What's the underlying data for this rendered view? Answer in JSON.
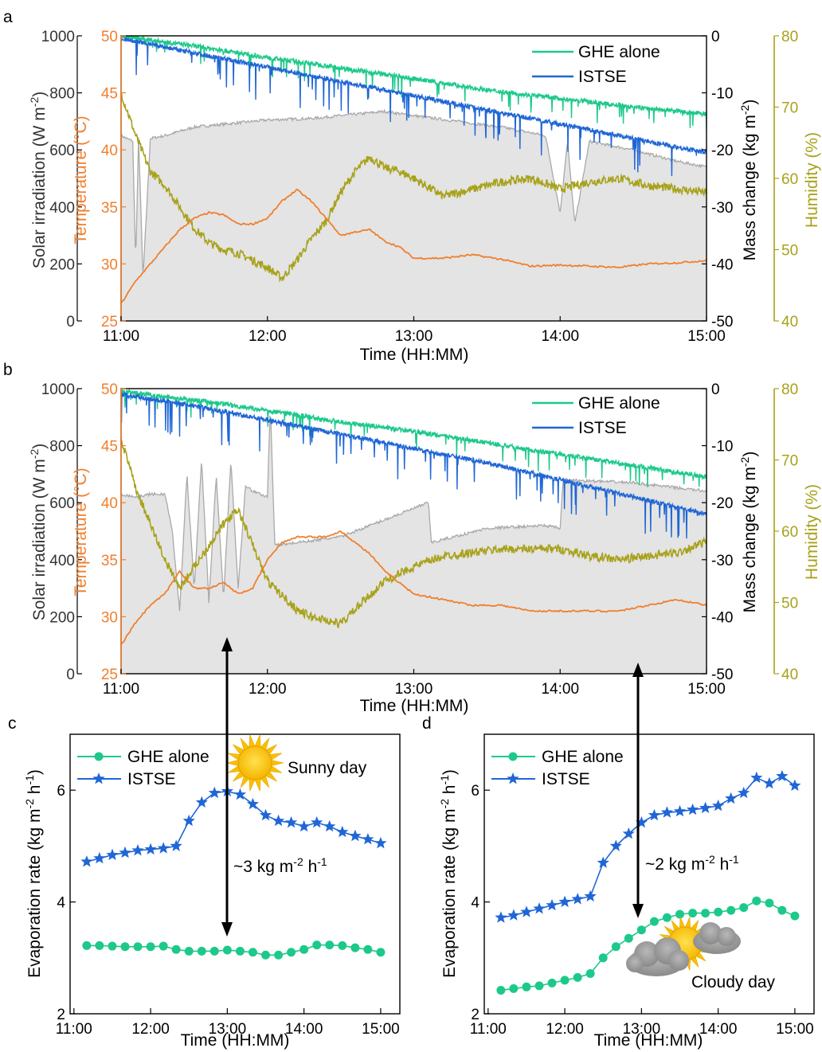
{
  "panels": {
    "a": {
      "label": "a"
    },
    "b": {
      "label": "b"
    },
    "c": {
      "label": "c"
    },
    "d": {
      "label": "d"
    }
  },
  "colors": {
    "ghe": "#1dc98a",
    "istse": "#1f66d6",
    "temperature": "#f07f2e",
    "humidity": "#a8a21b",
    "solar_line": "#a9a9a9",
    "solar_fill": "#e4e4e4"
  },
  "chart_data": [
    {
      "panel": "a",
      "type": "line",
      "xlabel": "Time (HH:MM)",
      "x_ticks": [
        "11:00",
        "12:00",
        "13:00",
        "14:00",
        "15:00"
      ],
      "axes": {
        "solar": {
          "label": "Solar irradiation (W m-2)",
          "ylim": [
            0,
            1000
          ],
          "ticks": [
            "0",
            "200",
            "400",
            "600",
            "800",
            "1000"
          ]
        },
        "temperature": {
          "label": "Temperature (°C)",
          "ylim": [
            25,
            50
          ],
          "ticks": [
            "25",
            "30",
            "35",
            "40",
            "45",
            "50"
          ]
        },
        "mass": {
          "label": "Mass change (kg m-2)",
          "ylim": [
            -50,
            0
          ],
          "ticks": [
            "-50",
            "-40",
            "-30",
            "-20",
            "-10",
            "0"
          ]
        },
        "humidity": {
          "label": "Humidity (%)",
          "ylim": [
            40,
            80
          ],
          "ticks": [
            "40",
            "50",
            "60",
            "70",
            "80"
          ]
        }
      },
      "legend": [
        "GHE alone",
        "ISTSE"
      ],
      "series": {
        "ghe_mass": {
          "name": "GHE alone",
          "x": [
            11.0,
            11.5,
            12.0,
            12.5,
            13.0,
            13.5,
            14.0,
            14.5,
            15.0
          ],
          "y": [
            0,
            -1.8,
            -3.8,
            -5.6,
            -7.5,
            -9.5,
            -11.0,
            -12.5,
            -13.7
          ]
        },
        "istse_mass": {
          "name": "ISTSE",
          "x": [
            11.0,
            11.5,
            12.0,
            12.5,
            13.0,
            13.5,
            14.0,
            14.5,
            15.0
          ],
          "y": [
            -0.5,
            -3.0,
            -5.5,
            -8.0,
            -10.5,
            -13.0,
            -15.5,
            -18.0,
            -20.5
          ]
        },
        "temperature": {
          "x": [
            11.0,
            11.1,
            11.2,
            11.3,
            11.4,
            11.5,
            11.6,
            11.7,
            11.8,
            11.9,
            12.0,
            12.1,
            12.2,
            12.3,
            12.4,
            12.5,
            12.6,
            12.7,
            12.8,
            12.9,
            13.0,
            13.2,
            13.4,
            13.6,
            13.8,
            14.0,
            14.2,
            14.4,
            14.6,
            14.8,
            15.0
          ],
          "y": [
            26.5,
            28.5,
            30.0,
            31.5,
            33.0,
            34.0,
            34.5,
            34.3,
            33.5,
            33.5,
            34.0,
            35.5,
            36.5,
            35.5,
            34.0,
            32.5,
            32.8,
            33.0,
            32.0,
            31.5,
            30.5,
            30.5,
            30.8,
            30.4,
            29.8,
            29.9,
            29.8,
            29.7,
            30.0,
            30.1,
            30.3
          ]
        },
        "humidity": {
          "x": [
            11.0,
            11.1,
            11.2,
            11.3,
            11.4,
            11.5,
            11.6,
            11.7,
            11.8,
            11.9,
            12.0,
            12.1,
            12.2,
            12.3,
            12.4,
            12.5,
            12.6,
            12.7,
            12.8,
            12.9,
            13.0,
            13.2,
            13.4,
            13.6,
            13.8,
            14.0,
            14.2,
            14.4,
            14.6,
            14.8,
            15.0
          ],
          "y": [
            72.0,
            66.0,
            61.0,
            59.0,
            56.0,
            53.0,
            51.0,
            50.0,
            49.5,
            48.5,
            47.5,
            46.0,
            48.5,
            51.5,
            54.0,
            58.0,
            61.0,
            63.0,
            61.5,
            61.0,
            60.0,
            57.5,
            58.5,
            59.5,
            60.0,
            58.5,
            59.5,
            60.0,
            59.0,
            58.5,
            58.0
          ]
        },
        "solar": {
          "x": [
            11.0,
            11.08,
            11.1,
            11.12,
            11.15,
            11.2,
            11.3,
            11.5,
            11.7,
            12.0,
            12.3,
            12.6,
            12.8,
            13.0,
            13.3,
            13.6,
            13.9,
            14.0,
            14.05,
            14.1,
            14.2,
            14.5,
            14.8,
            15.0
          ],
          "y": [
            650,
            630,
            200,
            640,
            150,
            640,
            650,
            680,
            690,
            705,
            710,
            725,
            735,
            720,
            700,
            680,
            650,
            380,
            630,
            340,
            630,
            600,
            560,
            540
          ]
        }
      }
    },
    {
      "panel": "b",
      "type": "line",
      "xlabel": "Time (HH:MM)",
      "x_ticks": [
        "11:00",
        "12:00",
        "13:00",
        "14:00",
        "15:00"
      ],
      "axes": {
        "solar": {
          "label": "Solar irradiation (W m-2)",
          "ylim": [
            0,
            1000
          ],
          "ticks": [
            "0",
            "200",
            "400",
            "600",
            "800",
            "1000"
          ]
        },
        "temperature": {
          "label": "Temperature (°C)",
          "ylim": [
            25,
            50
          ],
          "ticks": [
            "25",
            "30",
            "35",
            "40",
            "45",
            "50"
          ]
        },
        "mass": {
          "label": "Mass change (kg m-2)",
          "ylim": [
            -50,
            0
          ],
          "ticks": [
            "-50",
            "-40",
            "-30",
            "-20",
            "-10",
            "0"
          ]
        },
        "humidity": {
          "label": "Humidity (%)",
          "ylim": [
            40,
            80
          ],
          "ticks": [
            "40",
            "50",
            "60",
            "70",
            "80"
          ]
        }
      },
      "legend": [
        "GHE alone",
        "ISTSE"
      ],
      "series": {
        "ghe_mass": {
          "name": "GHE alone",
          "x": [
            11.0,
            11.5,
            12.0,
            12.5,
            13.0,
            13.5,
            14.0,
            14.5,
            15.0
          ],
          "y": [
            -0.5,
            -2.0,
            -3.8,
            -5.8,
            -7.5,
            -9.5,
            -11.5,
            -13.5,
            -15.5
          ]
        },
        "istse_mass": {
          "name": "ISTSE",
          "x": [
            11.0,
            11.5,
            12.0,
            12.5,
            13.0,
            13.5,
            14.0,
            14.5,
            15.0
          ],
          "y": [
            -1.0,
            -3.0,
            -5.5,
            -8.0,
            -10.5,
            -13.0,
            -16.0,
            -19.0,
            -22.0
          ]
        },
        "temperature": {
          "x": [
            11.0,
            11.1,
            11.2,
            11.3,
            11.4,
            11.5,
            11.6,
            11.7,
            11.8,
            11.9,
            12.0,
            12.1,
            12.2,
            12.3,
            12.4,
            12.5,
            12.6,
            12.7,
            12.8,
            12.9,
            13.0,
            13.2,
            13.4,
            13.6,
            13.8,
            14.0,
            14.2,
            14.4,
            14.6,
            14.8,
            15.0
          ],
          "y": [
            27.5,
            29.5,
            31.0,
            32.0,
            34.0,
            32.5,
            32.5,
            33.0,
            32.0,
            32.5,
            35.0,
            36.5,
            37.0,
            37.0,
            37.0,
            37.5,
            36.5,
            35.5,
            34.0,
            33.0,
            32.0,
            31.5,
            31.0,
            31.0,
            30.5,
            30.5,
            30.5,
            30.5,
            31.0,
            31.5,
            31.0
          ]
        },
        "humidity": {
          "x": [
            11.0,
            11.1,
            11.2,
            11.3,
            11.4,
            11.5,
            11.6,
            11.7,
            11.8,
            11.9,
            12.0,
            12.1,
            12.2,
            12.3,
            12.4,
            12.5,
            12.6,
            12.7,
            12.8,
            12.9,
            13.0,
            13.2,
            13.4,
            13.6,
            13.8,
            14.0,
            14.2,
            14.4,
            14.6,
            14.8,
            15.0
          ],
          "y": [
            73.0,
            66.0,
            61.0,
            56.0,
            52.0,
            55.0,
            58.0,
            61.0,
            63.0,
            58.0,
            53.0,
            51.0,
            49.0,
            48.0,
            47.5,
            47.0,
            49.0,
            51.0,
            53.0,
            54.0,
            55.0,
            56.5,
            57.0,
            57.5,
            57.5,
            57.5,
            56.5,
            56.0,
            56.5,
            57.0,
            58.5
          ]
        },
        "solar": {
          "x": [
            11.0,
            11.1,
            11.2,
            11.3,
            11.35,
            11.4,
            11.45,
            11.5,
            11.55,
            11.6,
            11.65,
            11.7,
            11.75,
            11.8,
            11.85,
            11.9,
            12.0,
            12.02,
            12.05,
            12.5,
            13.0,
            13.1,
            13.12,
            13.5,
            13.9,
            14.0,
            14.02,
            14.5,
            15.0
          ],
          "y": [
            630,
            620,
            630,
            630,
            500,
            220,
            700,
            300,
            750,
            250,
            700,
            260,
            750,
            300,
            660,
            640,
            620,
            950,
            450,
            480,
            580,
            600,
            460,
            510,
            520,
            510,
            680,
            670,
            640
          ]
        }
      }
    },
    {
      "panel": "c",
      "type": "line",
      "xlabel": "Time (HH:MM)",
      "ylabel": "Evaporation rate (kg m-2 h-1)",
      "ylim": [
        2,
        7
      ],
      "x_ticks": [
        "11:00",
        "12:00",
        "13:00",
        "14:00",
        "15:00"
      ],
      "y_ticks": [
        "2",
        "4",
        "6"
      ],
      "legend": [
        "GHE alone",
        "ISTSE"
      ],
      "annotation": "~3 kg m-2 h-1",
      "weather": "Sunny day",
      "x": [
        11.167,
        11.333,
        11.5,
        11.667,
        11.833,
        12.0,
        12.167,
        12.333,
        12.5,
        12.667,
        12.833,
        13.0,
        13.167,
        13.333,
        13.5,
        13.667,
        13.833,
        14.0,
        14.167,
        14.333,
        14.5,
        14.667,
        14.833,
        15.0
      ],
      "series": [
        {
          "name": "GHE alone",
          "values": [
            3.22,
            3.22,
            3.21,
            3.2,
            3.2,
            3.2,
            3.21,
            3.15,
            3.12,
            3.12,
            3.12,
            3.14,
            3.12,
            3.1,
            3.05,
            3.05,
            3.1,
            3.15,
            3.23,
            3.23,
            3.22,
            3.18,
            3.15,
            3.1
          ]
        },
        {
          "name": "ISTSE",
          "values": [
            4.72,
            4.78,
            4.84,
            4.88,
            4.92,
            4.94,
            4.96,
            5.0,
            5.45,
            5.78,
            5.95,
            5.98,
            5.92,
            5.75,
            5.55,
            5.45,
            5.42,
            5.35,
            5.42,
            5.35,
            5.25,
            5.18,
            5.12,
            5.05
          ]
        }
      ]
    },
    {
      "panel": "d",
      "type": "line",
      "xlabel": "Time (HH:MM)",
      "ylabel": "Evaporation rate (kg m-2 h-1)",
      "ylim": [
        2,
        7
      ],
      "x_ticks": [
        "11:00",
        "12:00",
        "13:00",
        "14:00",
        "15:00"
      ],
      "y_ticks": [
        "2",
        "4",
        "6"
      ],
      "legend": [
        "GHE alone",
        "ISTSE"
      ],
      "annotation": "~2 kg m-2 h-1",
      "weather": "Cloudy day",
      "x": [
        11.167,
        11.333,
        11.5,
        11.667,
        11.833,
        12.0,
        12.167,
        12.333,
        12.5,
        12.667,
        12.833,
        13.0,
        13.167,
        13.333,
        13.5,
        13.667,
        13.833,
        14.0,
        14.167,
        14.333,
        14.5,
        14.667,
        14.833,
        15.0
      ],
      "series": [
        {
          "name": "GHE alone",
          "values": [
            2.42,
            2.45,
            2.48,
            2.5,
            2.55,
            2.6,
            2.65,
            2.72,
            3.0,
            3.2,
            3.35,
            3.5,
            3.65,
            3.72,
            3.78,
            3.8,
            3.8,
            3.82,
            3.85,
            3.9,
            4.02,
            3.98,
            3.85,
            3.75
          ]
        },
        {
          "name": "ISTSE",
          "values": [
            3.72,
            3.76,
            3.82,
            3.88,
            3.94,
            4.0,
            4.05,
            4.1,
            4.7,
            5.0,
            5.22,
            5.42,
            5.55,
            5.6,
            5.62,
            5.65,
            5.68,
            5.72,
            5.85,
            5.95,
            6.22,
            6.12,
            6.25,
            6.08
          ]
        }
      ]
    }
  ]
}
